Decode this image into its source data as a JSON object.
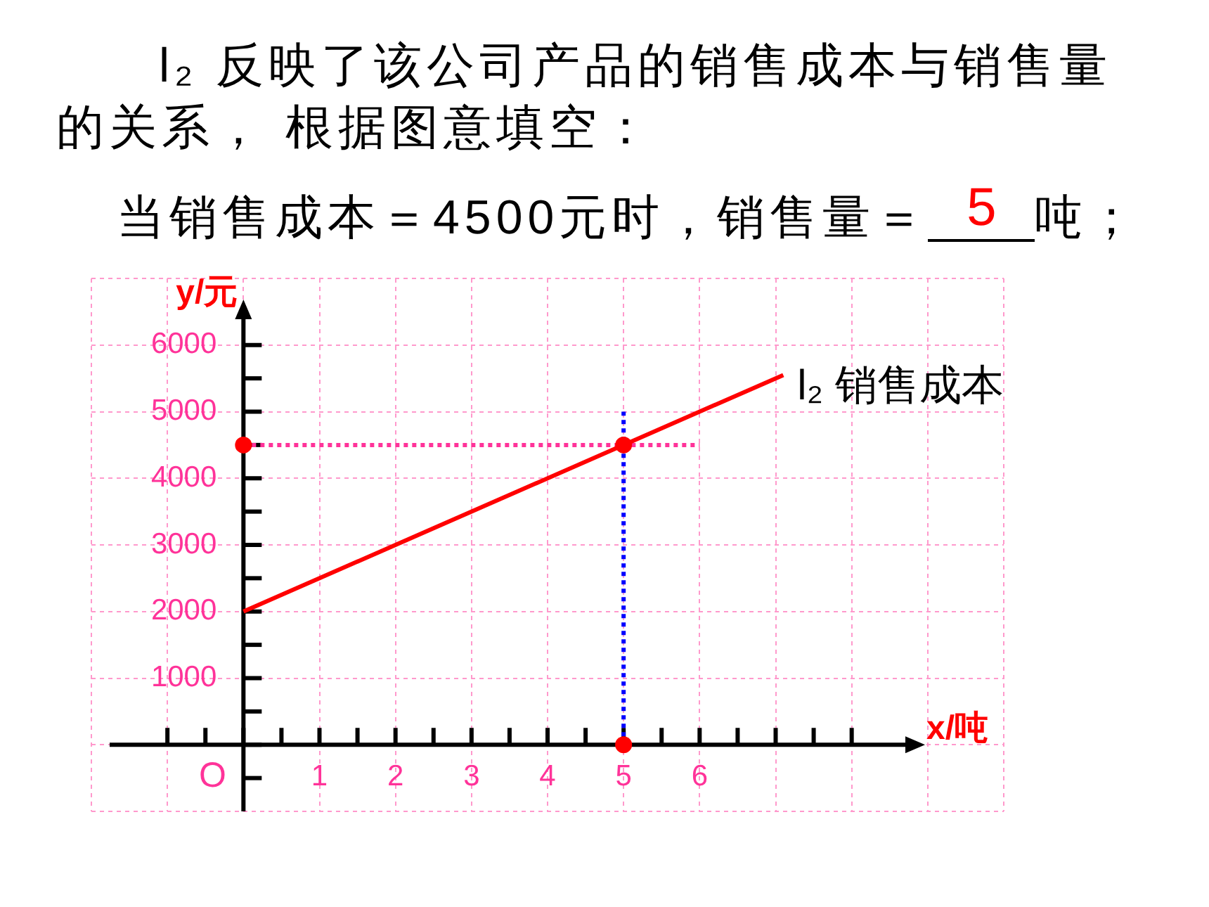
{
  "chart_data": {
    "type": "line",
    "title": "l₂ 反映了该公司产品的销售成本与销售量的关系， 根据图意填空：",
    "xlabel": "x/吨",
    "ylabel": "y/元",
    "annotations": [
      "当销售成本＝4500元时，销售量＝",
      "5",
      "吨；",
      "O"
    ],
    "xlim": [
      -2,
      10
    ],
    "ylim": [
      -1000,
      7000
    ],
    "xticks": [
      {
        "value": -2,
        "label": null
      },
      {
        "value": -1,
        "label": null
      },
      {
        "value": 0,
        "label": null
      },
      1,
      2,
      3,
      4,
      5,
      6,
      {
        "value": 7,
        "label": null
      },
      {
        "value": 8,
        "label": null
      },
      {
        "value": 9,
        "label": null
      },
      {
        "value": 10,
        "label": null
      }
    ],
    "yticks": [
      {
        "value": -1000,
        "label": null
      },
      {
        "value": 0,
        "label": null
      },
      1000,
      2000,
      3000,
      4000,
      5000,
      6000,
      {
        "value": 7000,
        "label": null
      }
    ],
    "grid": true,
    "series": [
      {
        "name": "l₂ 销售成本",
        "type": "line",
        "color": "#ff0000",
        "x": [
          0,
          7.1
        ],
        "values": [
          2000,
          5550
        ],
        "marker": "none",
        "line_style": "solid"
      },
      {
        "type": "line",
        "color": "#ff3399",
        "x": [
          0,
          6
        ],
        "values": [
          4500,
          4500
        ],
        "marker": "none",
        "line_style": "dotted"
      },
      {
        "type": "line",
        "color": "#0000ff",
        "x": [
          5,
          5
        ],
        "values": [
          0,
          5000
        ],
        "marker": "none",
        "line_style": "dotted"
      },
      {
        "type": "scatter",
        "color": "#ff0000",
        "x": [
          0,
          5,
          5
        ],
        "values": [
          4500,
          4500,
          0
        ],
        "marker": "circle"
      }
    ]
  }
}
